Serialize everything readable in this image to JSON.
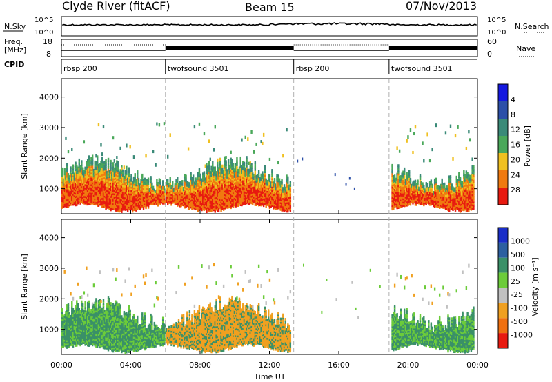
{
  "header": {
    "radar": "Clyde River (fitACF)",
    "beam": "Beam 15",
    "date": "07/Nov/2013"
  },
  "strips": {
    "nsky_label": "N.Sky",
    "nsearch_label": "N.Search",
    "freq_label_1": "Freq.",
    "freq_label_2": "[MHz]",
    "nave_label": "Nave",
    "cpid_label": "CPID",
    "noise_ticks_left": [
      "10^5",
      "10^0"
    ],
    "noise_ticks_right": [
      "10^5",
      "10^0"
    ],
    "freq_ticks": [
      "18",
      "8"
    ],
    "nave_ticks": [
      "60",
      "0"
    ]
  },
  "cpid_segments": [
    {
      "label": "rbsp 200",
      "start": 0.0,
      "end": 6.0
    },
    {
      "label": "twofsound 3501",
      "start": 6.0,
      "end": 13.4
    },
    {
      "label": "rbsp 200",
      "start": 13.4,
      "end": 18.9
    },
    {
      "label": "twofsound 3501",
      "start": 18.9,
      "end": 24.0
    }
  ],
  "chart_data": [
    {
      "type": "heatmap",
      "panel": "power",
      "ylabel": "Slant Range [km]",
      "ylim": [
        180,
        4600
      ],
      "yticks": [
        "1000",
        "2000",
        "3000",
        "4000"
      ],
      "xlim_hours": [
        0,
        24
      ],
      "colorbar": {
        "label": "Power [dB]",
        "ticks": [
          "4",
          "8",
          "12",
          "16",
          "20",
          "24",
          "28"
        ],
        "colors": [
          "#1418e0",
          "#2c4fa8",
          "#3a8a78",
          "#4aa85a",
          "#f0c020",
          "#f07a10",
          "#e81a10"
        ]
      }
    },
    {
      "type": "heatmap",
      "panel": "velocity",
      "ylabel": "Slant Range [km]",
      "ylim": [
        180,
        4600
      ],
      "yticks": [
        "1000",
        "2000",
        "3000",
        "4000"
      ],
      "xlim_hours": [
        0,
        24
      ],
      "colorbar": {
        "label": "Velocity [m s⁻¹]",
        "ticks": [
          "1000",
          "500",
          "100",
          "25",
          "-25",
          "-100",
          "-500",
          "-1000"
        ],
        "colors": [
          "#1a2ec8",
          "#2c5fa0",
          "#3a9068",
          "#6ccc3a",
          "#c0c0c0",
          "#f0a020",
          "#f07010",
          "#e81a10"
        ]
      }
    }
  ],
  "xaxis": {
    "ticks": [
      "00:00",
      "04:00",
      "08:00",
      "12:00",
      "16:00",
      "20:00",
      "00:00"
    ],
    "label": "Time UT"
  },
  "colors": {
    "dashed_divider": "#b0b0b0"
  }
}
